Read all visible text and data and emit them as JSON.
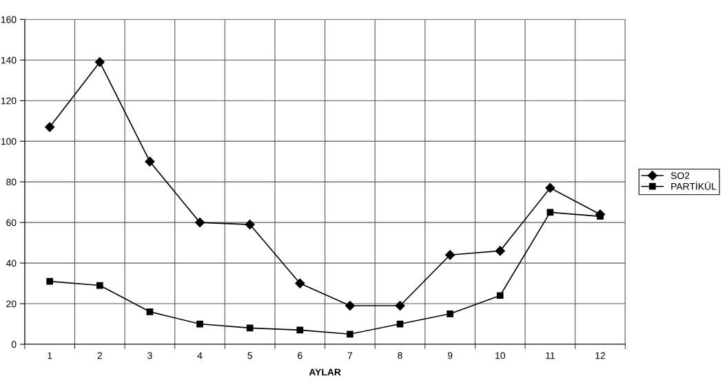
{
  "chart_data": {
    "type": "line",
    "xlabel": "AYLAR",
    "categories": [
      "1",
      "2",
      "3",
      "4",
      "5",
      "6",
      "7",
      "8",
      "9",
      "10",
      "11",
      "12"
    ],
    "series": [
      {
        "name": "SO2",
        "color": "#000000",
        "marker": "diamond",
        "values": [
          107,
          139,
          90,
          60,
          59,
          30,
          19,
          19,
          44,
          46,
          77,
          64
        ]
      },
      {
        "name": "PARTİKÜL",
        "color": "#000000",
        "marker": "square",
        "values": [
          31,
          29,
          16,
          10,
          8,
          7,
          5,
          10,
          15,
          24,
          65,
          63
        ]
      }
    ],
    "ylim": [
      0,
      160
    ],
    "yticks": [
      0,
      20,
      40,
      60,
      80,
      100,
      120,
      140,
      160
    ],
    "grid": true,
    "legend": "right",
    "line_style": "solid"
  }
}
